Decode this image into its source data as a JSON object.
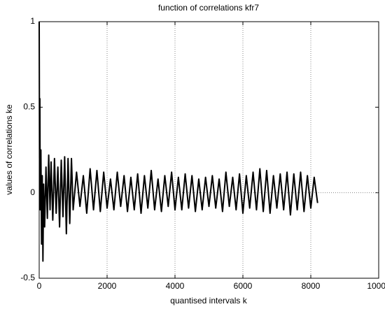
{
  "chart_data": {
    "type": "line",
    "title": "function of correlations kfr7",
    "x_label": "quantised intervals k",
    "y_label": "values of correlations ke",
    "x": [
      0,
      10,
      20,
      30,
      50,
      70,
      90,
      110,
      130,
      160,
      200,
      240,
      280,
      320,
      350,
      400,
      450,
      500,
      550,
      600,
      650,
      700,
      750,
      800,
      850,
      900,
      950,
      1000,
      1100,
      1200,
      1300,
      1400,
      1500,
      1600,
      1700,
      1800,
      1900,
      2000,
      2100,
      2200,
      2300,
      2400,
      2500,
      2600,
      2700,
      2800,
      2900,
      3000,
      3100,
      3200,
      3300,
      3400,
      3500,
      3600,
      3700,
      3800,
      3900,
      4000,
      4100,
      4200,
      4300,
      4400,
      4500,
      4600,
      4700,
      4800,
      4900,
      5000,
      5100,
      5200,
      5300,
      5400,
      5500,
      5600,
      5700,
      5800,
      5900,
      6000,
      6100,
      6200,
      6300,
      6400,
      6500,
      6600,
      6700,
      6800,
      6900,
      7000,
      7100,
      7200,
      7300,
      7400,
      7500,
      7600,
      7700,
      7800,
      7900,
      8000,
      8100,
      8200
    ],
    "series": [
      {
        "color": "#000000",
        "values": [
          1,
          0.2,
          0.55,
          -0.1,
          0.25,
          -0.3,
          0.1,
          -0.4,
          0.05,
          -0.2,
          0.15,
          -0.15,
          0.22,
          -0.1,
          0.18,
          -0.16,
          0.2,
          -0.12,
          0.15,
          -0.2,
          0.19,
          -0.14,
          0.21,
          -0.24,
          0.2,
          -0.18,
          0.2,
          -0.1,
          0.12,
          -0.08,
          0.1,
          -0.12,
          0.14,
          -0.1,
          0.13,
          -0.11,
          0.12,
          -0.09,
          0.08,
          -0.1,
          0.12,
          -0.08,
          0.1,
          -0.11,
          0.09,
          -0.1,
          0.11,
          -0.12,
          0.1,
          -0.09,
          0.13,
          -0.1,
          0.08,
          -0.11,
          0.1,
          -0.08,
          0.12,
          -0.1,
          0.09,
          -0.1,
          0.11,
          -0.09,
          0.1,
          -0.11,
          0.08,
          -0.1,
          0.09,
          -0.08,
          0.1,
          -0.09,
          0.08,
          -0.11,
          0.12,
          -0.08,
          0.09,
          -0.1,
          0.11,
          -0.12,
          0.1,
          -0.09,
          0.12,
          -0.1,
          0.14,
          -0.11,
          0.13,
          -0.12,
          0.1,
          -0.09,
          0.11,
          -0.1,
          0.12,
          -0.13,
          0.11,
          -0.1,
          0.12,
          -0.11,
          0.1,
          -0.09,
          0.09,
          -0.06
        ]
      }
    ],
    "xlim": [
      0,
      10000
    ],
    "xticks": [
      0,
      2000,
      4000,
      6000,
      8000,
      10000
    ],
    "ylim": [
      -0.5,
      1
    ],
    "yticks": [
      -0.5,
      0,
      0.5,
      1
    ],
    "grid": "x",
    "hline": 0
  }
}
